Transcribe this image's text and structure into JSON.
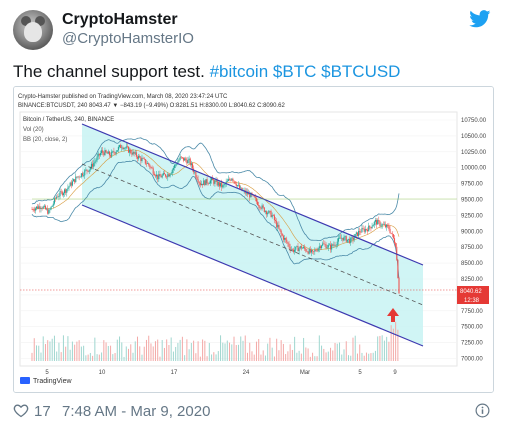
{
  "tweet": {
    "display_name": "CryptoHamster",
    "handle": "@CryptoHamsterIO",
    "text_plain": "The channel support test. ",
    "hashtag": "#bitcoin",
    "cashtag_1": "$BTC",
    "cashtag_2": "$BTCUSD",
    "likes": "17",
    "timestamp": "7:48 AM - Mar 9, 2020",
    "brand_color": "#1da1f2"
  },
  "chart": {
    "published_line": "Crypto-Hamster published on TradingView.com, March 08, 2020 23:47:24 UTC",
    "ticker_line": "BINANCE:BTCUSDT, 240  8043.47 ▼ −843.19 (−9.49%) O:8281.51 H:8300.00 L:8040.62 C:8090.62",
    "series_label": "Bitcoin / TetherUS, 240, BINANCE",
    "vol_label": "Vol (20)",
    "bb_label": "BB (20, close, 2)",
    "price_tag": "8040.62",
    "time_tag": "12:38",
    "watermark": "TradingView",
    "y_ticks": [
      "10750.00",
      "10500.00",
      "10250.00",
      "10000.00",
      "9750.00",
      "9500.00",
      "9250.00",
      "9000.00",
      "8750.00",
      "8500.00",
      "8250.00",
      "8000.00",
      "7750.00",
      "7500.00",
      "7250.00",
      "7000.00"
    ],
    "x_ticks": [
      "5",
      "10",
      "17",
      "24",
      "Mar",
      "5",
      "9"
    ],
    "colors": {
      "channel_fill": "#c8f3f3",
      "channel_line": "#3d39b0",
      "up": "#26a69a",
      "down": "#ef5350",
      "price_line": "#e53935",
      "arrow": "#e53935"
    }
  }
}
